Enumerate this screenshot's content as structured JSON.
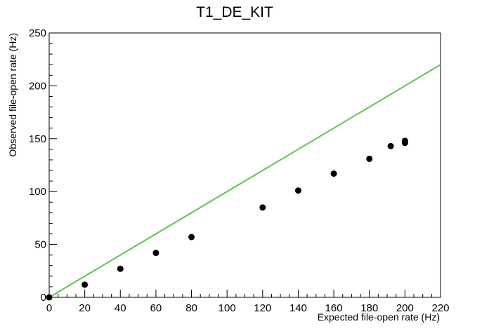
{
  "chart_data": {
    "type": "scatter",
    "title": "T1_DE_KIT",
    "xlabel": "Expected file-open rate (Hz)",
    "ylabel": "Observed file-open rate (Hz)",
    "xlim": [
      0,
      220
    ],
    "ylim": [
      0,
      250
    ],
    "x_ticks": [
      "0",
      "20",
      "40",
      "60",
      "80",
      "100",
      "120",
      "140",
      "160",
      "180",
      "200",
      "220"
    ],
    "y_ticks": [
      "0",
      "50",
      "100",
      "150",
      "200",
      "250"
    ],
    "grid": false,
    "series": [
      {
        "type": "scatter",
        "color": "#000000",
        "points": [
          {
            "x": 0,
            "y": 0
          },
          {
            "x": 20,
            "y": 12
          },
          {
            "x": 40,
            "y": 27
          },
          {
            "x": 60,
            "y": 42
          },
          {
            "x": 80,
            "y": 57
          },
          {
            "x": 120,
            "y": 85
          },
          {
            "x": 140,
            "y": 101
          },
          {
            "x": 160,
            "y": 117
          },
          {
            "x": 180,
            "y": 131
          },
          {
            "x": 192,
            "y": 143
          },
          {
            "x": 200,
            "y": 146
          },
          {
            "x": 200,
            "y": 148
          }
        ]
      },
      {
        "type": "line",
        "color": "#5ac84a",
        "points": [
          {
            "x": 0,
            "y": 0
          },
          {
            "x": 220,
            "y": 220
          }
        ]
      }
    ]
  }
}
